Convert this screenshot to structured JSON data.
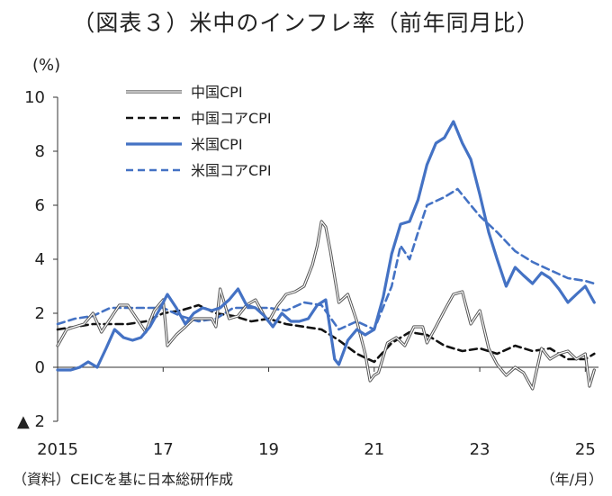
{
  "title": "（図表３）米中のインフレ率（前年同月比）",
  "source": "（資料）CEICを基に日本総研作成",
  "x_unit": "（年/月）",
  "chart_data": {
    "type": "line",
    "y_unit": "(%)",
    "ylim": [
      -2,
      10
    ],
    "yticks": [
      -2,
      0,
      2,
      4,
      6,
      8,
      10
    ],
    "ytick_labels": [
      "▲ 2",
      "0",
      "2",
      "4",
      "6",
      "8",
      "10"
    ],
    "xlim": [
      2015.0,
      2025.25
    ],
    "xticks": [
      2015,
      2017,
      2019,
      2021,
      2023,
      2025
    ],
    "xtick_labels": [
      "2015",
      "17",
      "19",
      "21",
      "23",
      "25"
    ],
    "grid": false,
    "legend": "top-center",
    "series": [
      {
        "name": "中国CPI",
        "color": "#555555",
        "style": "outline",
        "points": [
          [
            2015.0,
            0.8
          ],
          [
            2015.17,
            1.4
          ],
          [
            2015.33,
            1.5
          ],
          [
            2015.5,
            1.6
          ],
          [
            2015.67,
            2.0
          ],
          [
            2015.83,
            1.3
          ],
          [
            2016.0,
            1.8
          ],
          [
            2016.17,
            2.3
          ],
          [
            2016.33,
            2.3
          ],
          [
            2016.5,
            1.8
          ],
          [
            2016.67,
            1.3
          ],
          [
            2016.83,
            2.1
          ],
          [
            2017.0,
            2.5
          ],
          [
            2017.08,
            0.8
          ],
          [
            2017.25,
            1.2
          ],
          [
            2017.42,
            1.5
          ],
          [
            2017.58,
            1.8
          ],
          [
            2017.75,
            1.8
          ],
          [
            2017.92,
            1.8
          ],
          [
            2018.0,
            1.5
          ],
          [
            2018.08,
            2.9
          ],
          [
            2018.25,
            1.8
          ],
          [
            2018.42,
            1.9
          ],
          [
            2018.58,
            2.3
          ],
          [
            2018.75,
            2.5
          ],
          [
            2018.92,
            1.9
          ],
          [
            2019.0,
            1.7
          ],
          [
            2019.17,
            2.3
          ],
          [
            2019.33,
            2.7
          ],
          [
            2019.5,
            2.8
          ],
          [
            2019.67,
            3.0
          ],
          [
            2019.83,
            3.8
          ],
          [
            2019.92,
            4.5
          ],
          [
            2020.0,
            5.4
          ],
          [
            2020.08,
            5.2
          ],
          [
            2020.17,
            4.3
          ],
          [
            2020.33,
            2.4
          ],
          [
            2020.5,
            2.7
          ],
          [
            2020.67,
            1.7
          ],
          [
            2020.83,
            0.5
          ],
          [
            2020.92,
            -0.5
          ],
          [
            2021.0,
            -0.3
          ],
          [
            2021.08,
            -0.2
          ],
          [
            2021.25,
            0.9
          ],
          [
            2021.42,
            1.1
          ],
          [
            2021.58,
            0.8
          ],
          [
            2021.75,
            1.5
          ],
          [
            2021.92,
            1.5
          ],
          [
            2022.0,
            0.9
          ],
          [
            2022.17,
            1.5
          ],
          [
            2022.33,
            2.1
          ],
          [
            2022.5,
            2.7
          ],
          [
            2022.67,
            2.8
          ],
          [
            2022.83,
            1.6
          ],
          [
            2023.0,
            2.1
          ],
          [
            2023.17,
            0.7
          ],
          [
            2023.33,
            0.1
          ],
          [
            2023.5,
            -0.3
          ],
          [
            2023.67,
            0.0
          ],
          [
            2023.83,
            -0.2
          ],
          [
            2024.0,
            -0.8
          ],
          [
            2024.17,
            0.7
          ],
          [
            2024.33,
            0.3
          ],
          [
            2024.5,
            0.5
          ],
          [
            2024.67,
            0.6
          ],
          [
            2024.83,
            0.3
          ],
          [
            2025.0,
            0.5
          ],
          [
            2025.08,
            -0.7
          ],
          [
            2025.17,
            -0.1
          ]
        ]
      },
      {
        "name": "中国コアCPI",
        "color": "#111111",
        "style": "dashed",
        "points": [
          [
            2015.0,
            1.4
          ],
          [
            2015.33,
            1.5
          ],
          [
            2015.67,
            1.6
          ],
          [
            2016.0,
            1.6
          ],
          [
            2016.33,
            1.6
          ],
          [
            2016.67,
            1.7
          ],
          [
            2017.0,
            2.0
          ],
          [
            2017.33,
            2.1
          ],
          [
            2017.67,
            2.3
          ],
          [
            2018.0,
            2.0
          ],
          [
            2018.33,
            1.9
          ],
          [
            2018.67,
            1.7
          ],
          [
            2019.0,
            1.8
          ],
          [
            2019.33,
            1.6
          ],
          [
            2019.67,
            1.5
          ],
          [
            2020.0,
            1.4
          ],
          [
            2020.33,
            1.0
          ],
          [
            2020.67,
            0.5
          ],
          [
            2021.0,
            0.2
          ],
          [
            2021.33,
            0.9
          ],
          [
            2021.67,
            1.3
          ],
          [
            2022.0,
            1.2
          ],
          [
            2022.33,
            0.8
          ],
          [
            2022.67,
            0.6
          ],
          [
            2023.0,
            0.7
          ],
          [
            2023.33,
            0.5
          ],
          [
            2023.67,
            0.8
          ],
          [
            2024.0,
            0.6
          ],
          [
            2024.33,
            0.7
          ],
          [
            2024.67,
            0.3
          ],
          [
            2025.0,
            0.3
          ],
          [
            2025.17,
            0.5
          ]
        ]
      },
      {
        "name": "米国CPI",
        "color": "#4472C4",
        "style": "solid",
        "points": [
          [
            2015.0,
            -0.1
          ],
          [
            2015.25,
            -0.1
          ],
          [
            2015.42,
            0.0
          ],
          [
            2015.58,
            0.2
          ],
          [
            2015.75,
            0.0
          ],
          [
            2015.92,
            0.7
          ],
          [
            2016.08,
            1.4
          ],
          [
            2016.25,
            1.1
          ],
          [
            2016.42,
            1.0
          ],
          [
            2016.58,
            1.1
          ],
          [
            2016.75,
            1.5
          ],
          [
            2016.92,
            2.1
          ],
          [
            2017.08,
            2.7
          ],
          [
            2017.25,
            2.2
          ],
          [
            2017.42,
            1.6
          ],
          [
            2017.58,
            2.0
          ],
          [
            2017.75,
            2.2
          ],
          [
            2017.92,
            2.1
          ],
          [
            2018.08,
            2.2
          ],
          [
            2018.25,
            2.5
          ],
          [
            2018.42,
            2.9
          ],
          [
            2018.58,
            2.3
          ],
          [
            2018.75,
            2.2
          ],
          [
            2018.92,
            1.9
          ],
          [
            2019.08,
            1.5
          ],
          [
            2019.25,
            2.0
          ],
          [
            2019.42,
            1.7
          ],
          [
            2019.58,
            1.7
          ],
          [
            2019.75,
            1.8
          ],
          [
            2019.92,
            2.3
          ],
          [
            2020.08,
            2.5
          ],
          [
            2020.25,
            0.3
          ],
          [
            2020.33,
            0.1
          ],
          [
            2020.5,
            1.0
          ],
          [
            2020.67,
            1.4
          ],
          [
            2020.83,
            1.2
          ],
          [
            2021.0,
            1.4
          ],
          [
            2021.17,
            2.6
          ],
          [
            2021.33,
            4.2
          ],
          [
            2021.5,
            5.3
          ],
          [
            2021.67,
            5.4
          ],
          [
            2021.83,
            6.2
          ],
          [
            2022.0,
            7.5
          ],
          [
            2022.17,
            8.3
          ],
          [
            2022.33,
            8.5
          ],
          [
            2022.5,
            9.1
          ],
          [
            2022.67,
            8.3
          ],
          [
            2022.83,
            7.7
          ],
          [
            2023.0,
            6.4
          ],
          [
            2023.17,
            5.0
          ],
          [
            2023.33,
            4.0
          ],
          [
            2023.5,
            3.0
          ],
          [
            2023.67,
            3.7
          ],
          [
            2023.83,
            3.4
          ],
          [
            2024.0,
            3.1
          ],
          [
            2024.17,
            3.5
          ],
          [
            2024.33,
            3.3
          ],
          [
            2024.5,
            2.9
          ],
          [
            2024.67,
            2.4
          ],
          [
            2024.83,
            2.7
          ],
          [
            2025.0,
            3.0
          ],
          [
            2025.17,
            2.4
          ]
        ]
      },
      {
        "name": "米国コアCPI",
        "color": "#4472C4",
        "style": "dashed",
        "points": [
          [
            2015.0,
            1.6
          ],
          [
            2015.33,
            1.8
          ],
          [
            2015.67,
            1.9
          ],
          [
            2016.0,
            2.2
          ],
          [
            2016.33,
            2.2
          ],
          [
            2016.67,
            2.2
          ],
          [
            2017.0,
            2.2
          ],
          [
            2017.33,
            1.9
          ],
          [
            2017.67,
            1.7
          ],
          [
            2018.0,
            1.8
          ],
          [
            2018.33,
            2.2
          ],
          [
            2018.67,
            2.2
          ],
          [
            2019.0,
            2.2
          ],
          [
            2019.33,
            2.1
          ],
          [
            2019.67,
            2.4
          ],
          [
            2020.0,
            2.3
          ],
          [
            2020.33,
            1.4
          ],
          [
            2020.67,
            1.7
          ],
          [
            2021.0,
            1.4
          ],
          [
            2021.33,
            3.0
          ],
          [
            2021.5,
            4.5
          ],
          [
            2021.67,
            4.0
          ],
          [
            2021.83,
            5.0
          ],
          [
            2022.0,
            6.0
          ],
          [
            2022.33,
            6.3
          ],
          [
            2022.58,
            6.6
          ],
          [
            2022.83,
            6.0
          ],
          [
            2023.0,
            5.6
          ],
          [
            2023.33,
            5.0
          ],
          [
            2023.67,
            4.3
          ],
          [
            2024.0,
            3.9
          ],
          [
            2024.33,
            3.6
          ],
          [
            2024.67,
            3.3
          ],
          [
            2025.0,
            3.2
          ],
          [
            2025.17,
            3.1
          ]
        ]
      }
    ]
  }
}
